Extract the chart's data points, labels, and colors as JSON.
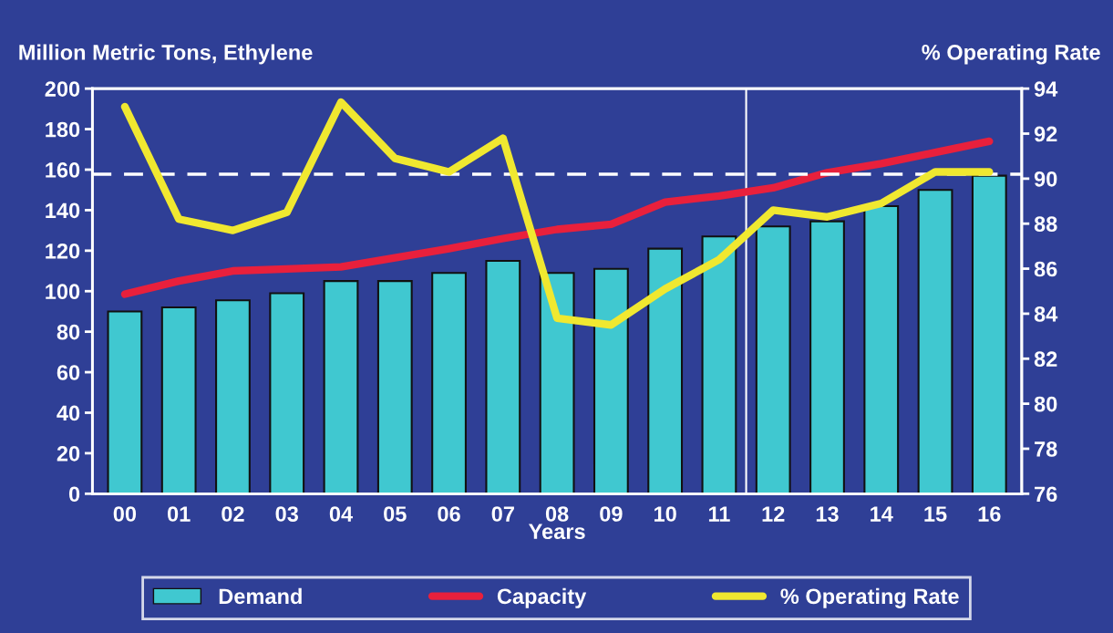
{
  "chart_data": {
    "type": "bar",
    "ylabel": "Million Metric Tons, Ethylene",
    "y2label": "% Operating Rate",
    "xlabel": "Years",
    "categories": [
      "00",
      "01",
      "02",
      "03",
      "04",
      "05",
      "06",
      "07",
      "08",
      "09",
      "10",
      "11",
      "12",
      "13",
      "14",
      "15",
      "16"
    ],
    "series": [
      {
        "name": "Demand",
        "color": "#40c8d0",
        "values": [
          90,
          92,
          95.5,
          99,
          105,
          105,
          109,
          115,
          109,
          111,
          121,
          127,
          132,
          134.5,
          142,
          150,
          157
        ]
      },
      {
        "name": "Capacity",
        "type": "line",
        "color": "#e8203c",
        "values": [
          98.5,
          105,
          110,
          111,
          112,
          116.5,
          121,
          126,
          130.5,
          133,
          144,
          147,
          151,
          158.5,
          163,
          168.5,
          174
        ]
      },
      {
        "name": "% Operating Rate",
        "type": "line",
        "axis": "y2",
        "color": "#f0e830",
        "values": [
          93.2,
          88.2,
          87.7,
          88.5,
          93.4,
          90.9,
          90.3,
          91.8,
          83.8,
          83.5,
          85.1,
          86.4,
          88.6,
          88.3,
          88.9,
          90.3,
          90.3
        ]
      }
    ],
    "ylim": [
      0,
      200
    ],
    "yticks": [
      0,
      20,
      40,
      60,
      80,
      100,
      120,
      140,
      160,
      180,
      200
    ],
    "y2lim": [
      76,
      94
    ],
    "y2ticks": [
      76,
      78,
      80,
      82,
      84,
      86,
      88,
      90,
      92,
      94
    ],
    "ref_lines": [
      {
        "axis": "y2",
        "value": 90.2,
        "color": "#ffffff",
        "line_style": "dashed"
      }
    ],
    "grid": false,
    "legend": "bottom",
    "marker": "none",
    "line_style": "solid"
  }
}
